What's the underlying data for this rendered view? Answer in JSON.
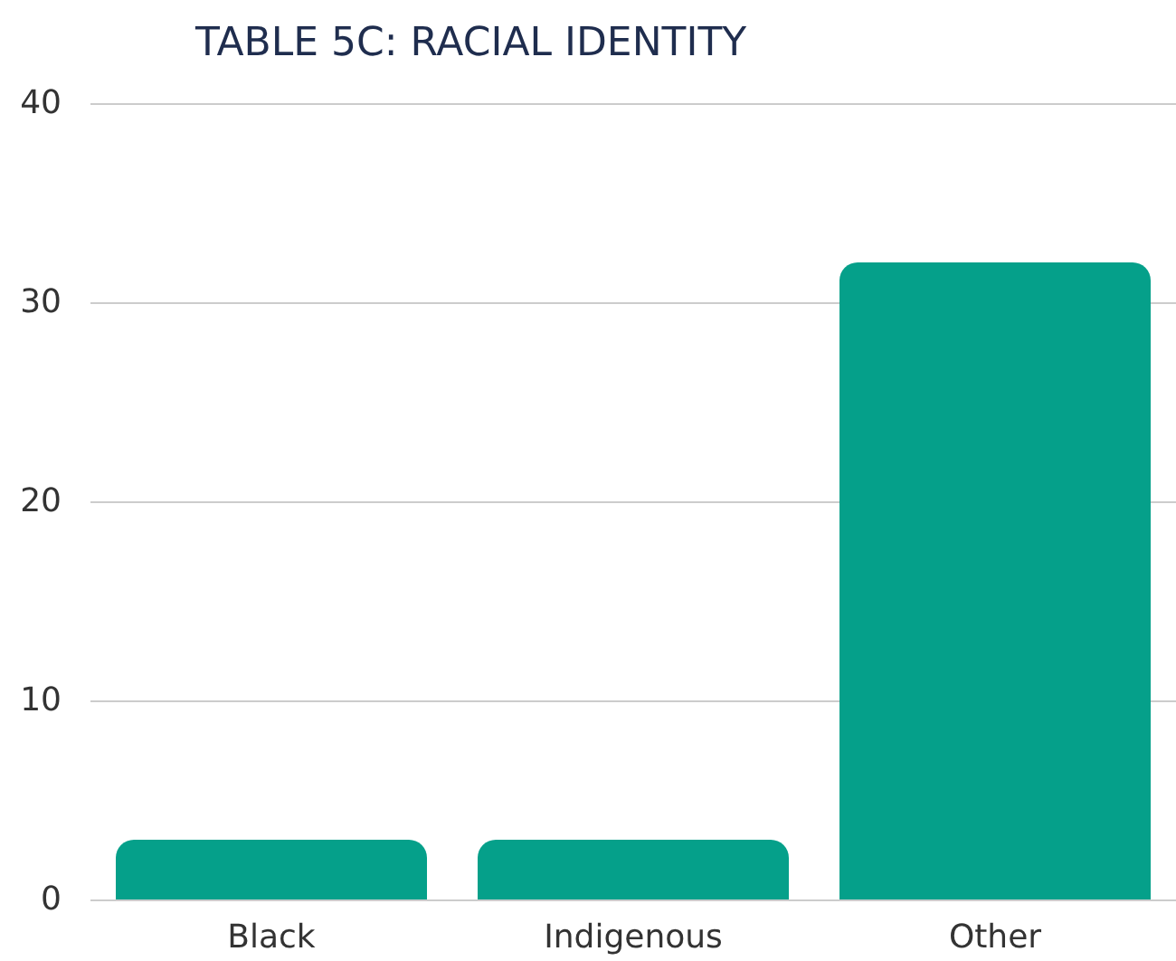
{
  "chart_data": {
    "type": "bar",
    "title": "TABLE 5C: RACIAL IDENTITY",
    "categories": [
      "Black",
      "Indigenous",
      "Other"
    ],
    "values": [
      3,
      3,
      32
    ],
    "color": "#05a08a",
    "ylim": [
      0,
      40
    ],
    "yticks": [
      0,
      10,
      20,
      30,
      40
    ],
    "grid": "y"
  }
}
